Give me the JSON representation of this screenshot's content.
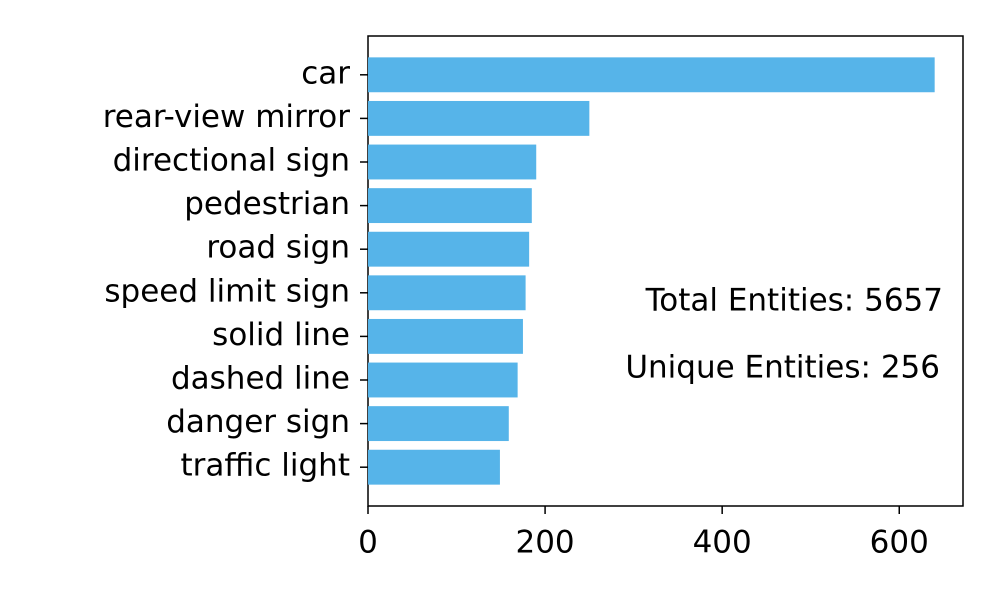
{
  "chart_data": {
    "type": "barh",
    "categories": [
      "car",
      "rear-view mirror",
      "directional sign",
      "pedestrian",
      "road sign",
      "speed limit sign",
      "solid line",
      "dashed line",
      "danger sign",
      "traffic light"
    ],
    "values": [
      640,
      250,
      190,
      185,
      182,
      178,
      175,
      169,
      159,
      149
    ],
    "color": "#56b4e9",
    "xlim": [
      0,
      672
    ],
    "xticks": [
      0,
      200,
      400,
      600
    ],
    "annotations": [
      "Total Entities: 5657",
      "Unique Entities: 256"
    ]
  }
}
